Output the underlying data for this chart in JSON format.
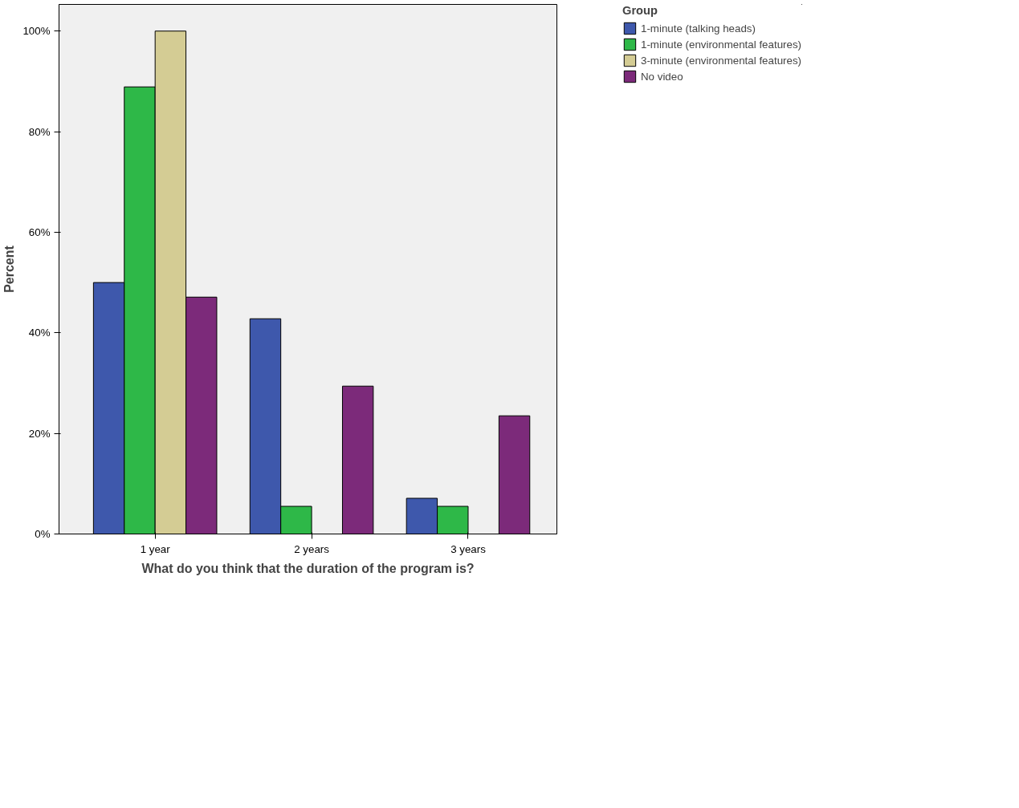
{
  "chart_data": {
    "type": "bar",
    "xlabel": "What do you think that the duration of the program is?",
    "ylabel": "Percent",
    "legend_title": "Group",
    "categories": [
      "1 year",
      "2 years",
      "3 years"
    ],
    "series": [
      {
        "name": "1-minute (talking heads)",
        "color": "#3e58ac",
        "values": [
          50,
          42.8,
          7.1
        ]
      },
      {
        "name": "1-minute (environmental features)",
        "color": "#2eb848",
        "values": [
          88.9,
          5.5,
          5.5
        ]
      },
      {
        "name": "3-minute (environmental features)",
        "color": "#d4cc94",
        "values": [
          100,
          0,
          0
        ]
      },
      {
        "name": "No video",
        "color": "#7c2a7a",
        "values": [
          47.1,
          29.4,
          23.5
        ]
      }
    ],
    "ylim": [
      0,
      105.3
    ],
    "yticks": [
      {
        "value": 0,
        "label": "0%"
      },
      {
        "value": 20,
        "label": "20%"
      },
      {
        "value": 40,
        "label": "40%"
      },
      {
        "value": 60,
        "label": "60%"
      },
      {
        "value": 80,
        "label": "80%"
      },
      {
        "value": 100,
        "label": "100%"
      }
    ],
    "grid": false,
    "legend": "top right"
  }
}
